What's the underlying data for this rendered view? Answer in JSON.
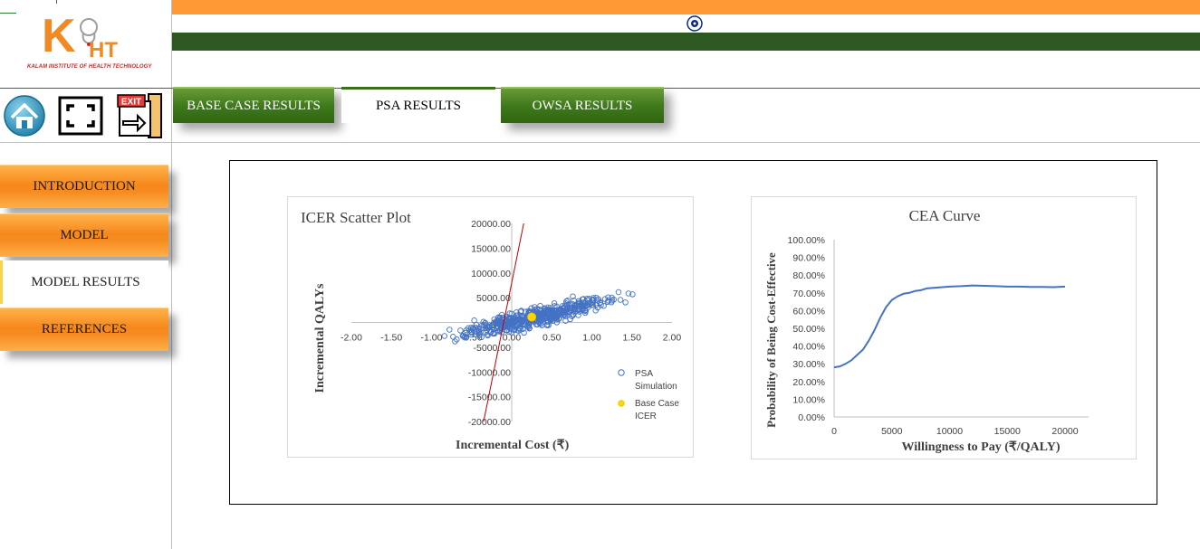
{
  "logo": {
    "letter": "K",
    "suffix": "HT",
    "tagline": "KALAM INSTITUTE OF HEALTH TECHNOLOGY"
  },
  "toolbar": {
    "home_icon": "home-icon",
    "fullscreen_icon": "fullscreen-icon",
    "exit_icon": "exit-icon",
    "exit_label": "EXIT"
  },
  "sidebar": {
    "items": [
      {
        "label": "INTRODUCTION",
        "active": false
      },
      {
        "label": "MODEL",
        "active": false
      },
      {
        "label": "MODEL RESULTS",
        "active": true
      },
      {
        "label": "REFERENCES",
        "active": false
      }
    ]
  },
  "tabs": [
    {
      "label": "BASE CASE RESULTS",
      "selected": false
    },
    {
      "label": "PSA RESULTS",
      "selected": true
    },
    {
      "label": "OWSA RESULTS",
      "selected": false
    }
  ],
  "colors": {
    "flag_saffron": "#fe9933",
    "flag_green": "#2e5822",
    "nav_orange": "#f7891c",
    "tab_green": "#3f7a1c",
    "series_blue": "#4472c4",
    "base_case_yellow": "#ffd700",
    "icer_line": "#c00000"
  },
  "chart_data": [
    {
      "type": "scatter",
      "title": "ICER Scatter Plot",
      "xlabel": "Incremental Cost (₹)",
      "ylabel": "Incremental QALYs",
      "xlim": [
        -2.0,
        2.0
      ],
      "ylim": [
        -20000,
        20000
      ],
      "x_ticks": [
        "-2.00",
        "-1.50",
        "-1.00",
        "-0.50",
        "0.00",
        "0.50",
        "1.00",
        "1.50",
        "2.00"
      ],
      "y_ticks": [
        "20000.00",
        "15000.00",
        "10000.00",
        "5000.00",
        "0.00",
        "-5000.00",
        "-10000.00",
        "-15000.00",
        "-20000.00"
      ],
      "series": [
        {
          "name": "PSA Simulation",
          "marker": "hollow-circle",
          "trend": {
            "slope": 3600,
            "intercept": 0,
            "x_range": [
              -1.0,
              1.6
            ],
            "spread_sd": 900
          }
        },
        {
          "name": "Base Case ICER",
          "marker": "filled-circle",
          "points": [
            [
              0.25,
              1100
            ]
          ]
        }
      ],
      "wtp_line": {
        "x1": -0.35,
        "y1": -20000,
        "x2": 0.15,
        "y2": 20000
      },
      "legend": "right"
    },
    {
      "type": "line",
      "title": "CEA Curve",
      "xlabel": "Willingness to Pay (₹/QALY)",
      "ylabel": "Probability of Being Cost-Effective",
      "xlim": [
        0,
        20000
      ],
      "ylim": [
        0,
        1
      ],
      "x_ticks": [
        "0",
        "5000",
        "10000",
        "15000",
        "20000"
      ],
      "y_ticks": [
        "100.00%",
        "90.00%",
        "80.00%",
        "70.00%",
        "60.00%",
        "50.00%",
        "40.00%",
        "30.00%",
        "20.00%",
        "10.00%",
        "0.00%"
      ],
      "x": [
        0,
        500,
        1000,
        1500,
        2000,
        2500,
        3000,
        3500,
        4000,
        4500,
        5000,
        5500,
        6000,
        6500,
        7000,
        7500,
        8000,
        9000,
        10000,
        11000,
        12000,
        13000,
        14000,
        15000,
        16000,
        17000,
        18000,
        19000,
        20000
      ],
      "values": [
        0.28,
        0.285,
        0.3,
        0.32,
        0.35,
        0.38,
        0.43,
        0.49,
        0.56,
        0.62,
        0.66,
        0.68,
        0.695,
        0.7,
        0.71,
        0.715,
        0.725,
        0.73,
        0.735,
        0.738,
        0.742,
        0.74,
        0.738,
        0.735,
        0.735,
        0.733,
        0.733,
        0.732,
        0.735
      ]
    }
  ]
}
